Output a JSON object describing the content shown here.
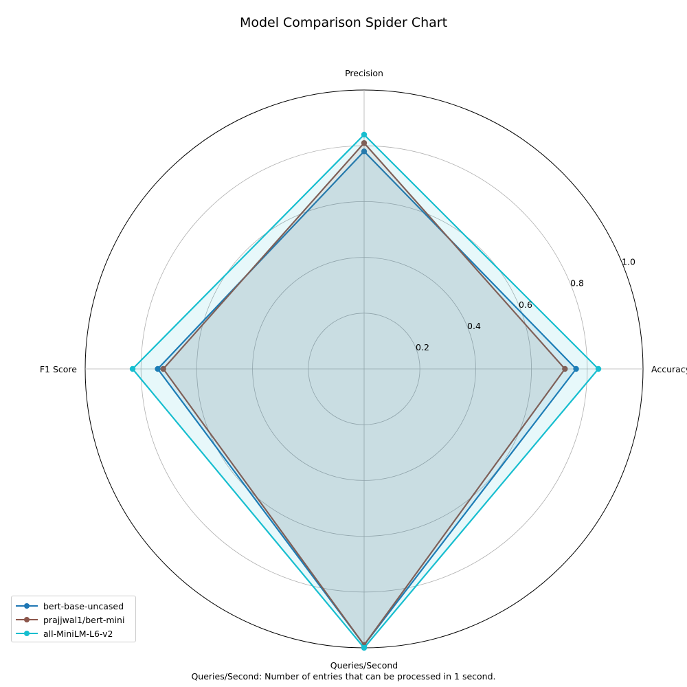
{
  "chart_data": {
    "type": "radar",
    "title": "Model Comparison Spider Chart",
    "footnote": "Queries/Second: Number of entries that can be processed in 1 second.",
    "axes": [
      "Accuracy",
      "Precision",
      "F1 Score",
      "Queries/Second"
    ],
    "rlim": [
      0,
      1.0
    ],
    "rticks": [
      "0.2",
      "0.4",
      "0.6",
      "0.8",
      "1.0"
    ],
    "rtick_values": [
      0.2,
      0.4,
      0.6,
      0.8,
      1.0
    ],
    "grid": true,
    "legend_position": "bottom-left",
    "series": [
      {
        "name": "bert-base-uncased",
        "values": [
          0.76,
          0.78,
          0.74,
          0.99
        ],
        "color": "#1f77b4",
        "fill": "#1f77b4",
        "fill_opacity": 0.1
      },
      {
        "name": "prajjwal1/bert-mini",
        "values": [
          0.72,
          0.81,
          0.72,
          0.99
        ],
        "color": "#8c564b",
        "fill": "#8c564b",
        "fill_opacity": 0.1
      },
      {
        "name": "all-MiniLM-L6-v2",
        "values": [
          0.84,
          0.84,
          0.83,
          1.0
        ],
        "color": "#17becf",
        "fill": "#17becf",
        "fill_opacity": 0.1
      }
    ]
  }
}
